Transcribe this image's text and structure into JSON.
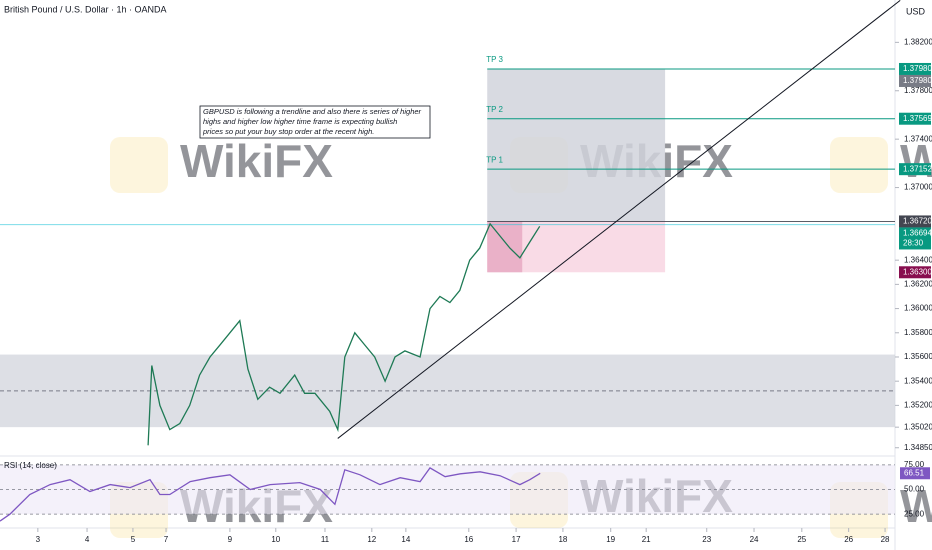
{
  "chart_data": [
    {
      "type": "line",
      "title": "British Pound / U.S. Dollar · 1h · OANDA",
      "currency": "USD",
      "watermark": "WikiFX",
      "x": [
        2.33,
        2.41,
        2.58,
        2.79,
        3.0,
        3.21,
        3.42,
        3.64,
        3.85,
        4.06,
        4.27,
        4.44,
        4.65,
        4.9,
        5.12,
        5.43,
        5.64,
        5.86,
        6.17,
        6.34,
        6.49,
        6.7,
        6.91,
        7.12,
        7.34,
        7.55,
        7.76,
        8.08,
        8.29,
        8.5,
        8.71,
        8.92,
        9.13,
        9.34,
        9.56,
        9.77,
        9.98,
        10.19,
        10.4,
        10.61
      ],
      "values": [
        1.3487,
        1.3553,
        1.352,
        1.35,
        1.3505,
        1.352,
        1.3545,
        1.356,
        1.357,
        1.358,
        1.359,
        1.355,
        1.3525,
        1.3535,
        1.353,
        1.3545,
        1.353,
        1.353,
        1.3515,
        1.35,
        1.356,
        1.358,
        1.357,
        1.356,
        1.354,
        1.356,
        1.3565,
        1.356,
        1.36,
        1.361,
        1.3605,
        1.3615,
        1.364,
        1.365,
        1.367,
        1.366,
        1.365,
        1.3642,
        1.3655,
        1.3668
      ],
      "color": "#1e7a55",
      "xlim": [
        -0.8,
        18.12
      ],
      "ylim": [
        1.3479,
        1.3855
      ],
      "yticks": [
        {
          "value": 1.382,
          "label": "1.38200"
        },
        {
          "value": 1.378,
          "label": "1.37800"
        },
        {
          "value": 1.374,
          "label": "1.37400"
        },
        {
          "value": 1.37,
          "label": "1.37000"
        },
        {
          "value": 1.364,
          "label": "1.36400"
        },
        {
          "value": 1.362,
          "label": "1.36200"
        },
        {
          "value": 1.36,
          "label": "1.36000"
        },
        {
          "value": 1.358,
          "label": "1.35800"
        },
        {
          "value": 1.356,
          "label": "1.35600"
        },
        {
          "value": 1.354,
          "label": "1.35400"
        },
        {
          "value": 1.352,
          "label": "1.35200"
        },
        {
          "value": 1.3502,
          "label": "1.35020"
        },
        {
          "value": 1.3485,
          "label": "1.34850"
        }
      ],
      "xticks": [
        {
          "value": 0,
          "label": "3"
        },
        {
          "value": 1.04,
          "label": "4"
        },
        {
          "value": 2.01,
          "label": "5"
        },
        {
          "value": 2.71,
          "label": "7"
        },
        {
          "value": 4.06,
          "label": "9"
        },
        {
          "value": 5.03,
          "label": "10"
        },
        {
          "value": 6.07,
          "label": "11"
        },
        {
          "value": 7.06,
          "label": "12"
        },
        {
          "value": 7.78,
          "label": "14"
        },
        {
          "value": 9.11,
          "label": "16"
        },
        {
          "value": 10.11,
          "label": "17"
        },
        {
          "value": 11.1,
          "label": "18"
        },
        {
          "value": 12.11,
          "label": "19"
        },
        {
          "value": 12.86,
          "label": "21"
        },
        {
          "value": 14.14,
          "label": "23"
        },
        {
          "value": 15.14,
          "label": "24"
        },
        {
          "value": 16.15,
          "label": "25"
        },
        {
          "value": 17.14,
          "label": "26"
        },
        {
          "value": 17.91,
          "label": "28"
        }
      ],
      "zone": {
        "range": [
          1.3502,
          1.3562
        ],
        "mid": 1.3532
      },
      "trendline": {
        "x": [
          6.34,
          18.23
        ],
        "values": [
          1.34927,
          1.38547
        ]
      },
      "current_price": 1.36694,
      "position": {
        "x": [
          9.5,
          13.26
        ],
        "entry_x_end": 10.24,
        "entry": 1.3672,
        "stop": 1.363,
        "target": 1.3798
      },
      "targets": [
        {
          "label": "TP 3",
          "value": 1.3798
        },
        {
          "label": "TP 2",
          "value": 1.37569
        },
        {
          "label": "TP 1",
          "value": 1.37152
        }
      ],
      "price_labels": [
        {
          "value": 1.3798,
          "label": "1.37980",
          "color": "#089981"
        },
        {
          "value": 1.3798,
          "label": "1.37980",
          "color": "#787b86"
        },
        {
          "value": 1.37569,
          "label": "1.37569",
          "color": "#089981"
        },
        {
          "value": 1.37152,
          "label": "1.37152",
          "color": "#089981"
        },
        {
          "value": 1.3672,
          "label": "1.36720",
          "color": "#434651"
        },
        {
          "value": 1.36694,
          "label": "1.36694",
          "sublabel": "28:30",
          "color": "#089981"
        },
        {
          "value": 1.363,
          "label": "1.36300",
          "color": "#880e4f"
        }
      ],
      "note": [
        "GBPUSD is following a trendline and also there is series of higher",
        "highs and higher low higher time frame is expecting bullish",
        "prices so put your buy stop order at the recent high."
      ]
    },
    {
      "type": "line",
      "title": "RSI (14, close)",
      "x": [
        -0.8,
        -0.59,
        -0.17,
        0.26,
        0.68,
        1.1,
        1.53,
        1.95,
        2.37,
        2.58,
        2.79,
        3.22,
        3.64,
        4.06,
        4.49,
        4.91,
        5.54,
        5.97,
        6.28,
        6.49,
        6.81,
        7.23,
        7.66,
        8.08,
        8.29,
        8.61,
        8.93,
        9.35,
        9.77,
        10.19,
        10.4,
        10.62
      ],
      "values": [
        18,
        25,
        45,
        55,
        60,
        48,
        55,
        52,
        60,
        45,
        45,
        58,
        62,
        65,
        50,
        55,
        57,
        50,
        35,
        70,
        65,
        55,
        62,
        58,
        72,
        63,
        66,
        68,
        64,
        55,
        60,
        66.51
      ],
      "last_label": "66.51",
      "color": "#7e57c2",
      "ylim": [
        14,
        82
      ],
      "yticks": [
        {
          "value": 75,
          "label": "75.00"
        },
        {
          "value": 50,
          "label": "50.00"
        },
        {
          "value": 25,
          "label": "25.00"
        }
      ]
    }
  ]
}
